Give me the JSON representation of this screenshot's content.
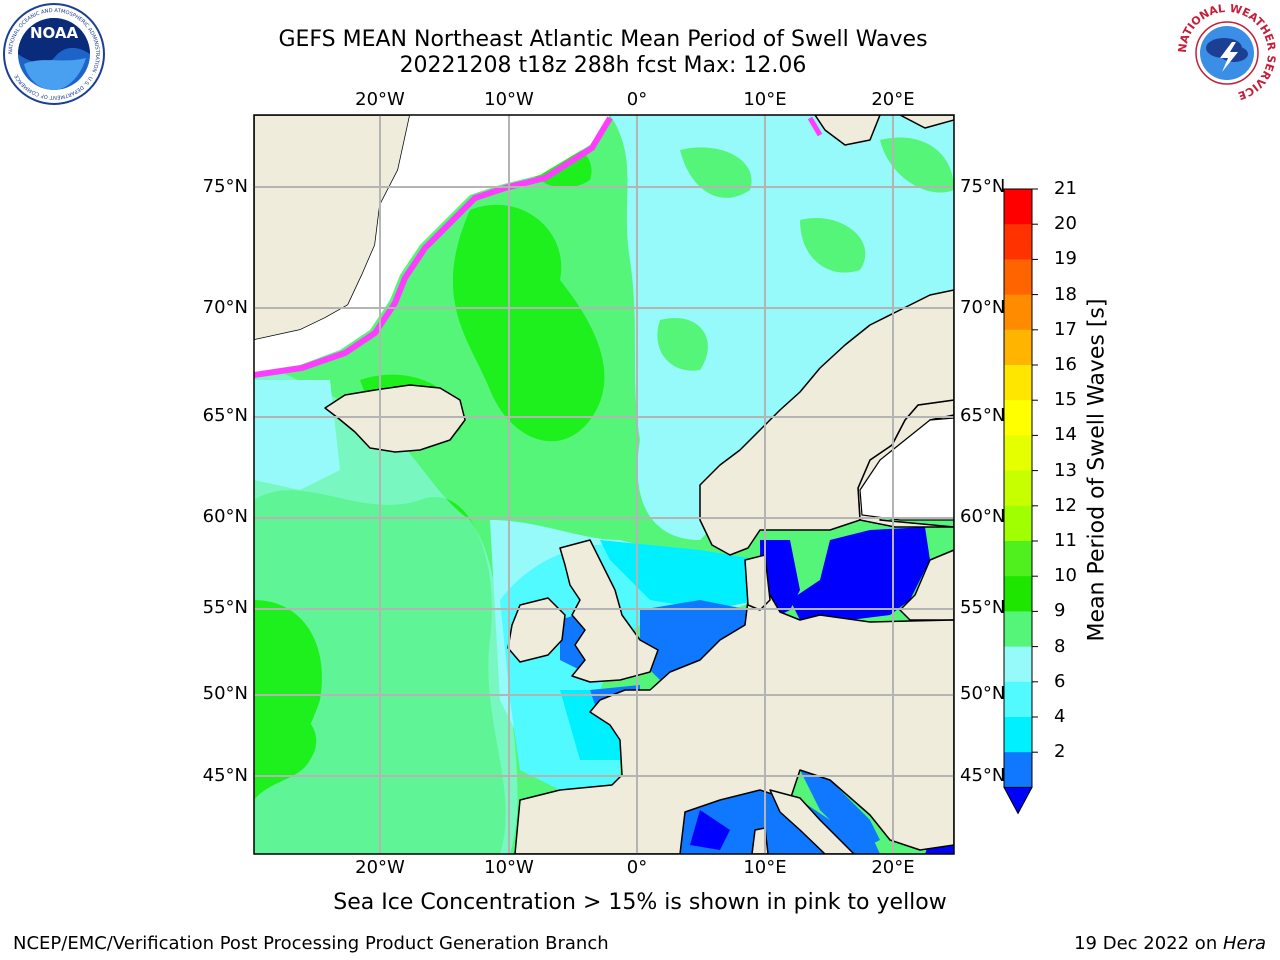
{
  "title": {
    "line1": "GEFS MEAN Northeast Atlantic Mean Period of Swell Waves",
    "line2": "20221208 t18z 288h fcst   Max: 12.06"
  },
  "map": {
    "lon_labels_top": [
      "20°W",
      "10°W",
      "0°",
      "10°E",
      "20°E"
    ],
    "lon_labels_bottom": [
      "20°W",
      "10°W",
      "0°",
      "10°E",
      "20°E"
    ],
    "lat_labels_left": [
      "75°N",
      "70°N",
      "65°N",
      "60°N",
      "55°N",
      "50°N",
      "45°N"
    ],
    "lat_labels_right": [
      "75°N",
      "70°N",
      "65°N",
      "60°N",
      "55°N",
      "50°N",
      "45°N"
    ],
    "colors": {
      "land": "#efecdc",
      "ocean_9_10": "#55f57a",
      "ocean_10_11": "#1ef01e",
      "ocean_8_9": "#96fafa",
      "ocean_6_8": "#50faff",
      "ocean_4_6": "#00f0ff",
      "ocean_2_4": "#0f78ff",
      "ocean_lt_2": "#0000ff",
      "sea_ice": "#ff3cff",
      "grid": "#b4b4b4"
    }
  },
  "colorbar": {
    "label": "Mean Period of Swell Waves [s]",
    "ticks": [
      "21",
      "20",
      "19",
      "18",
      "17",
      "16",
      "15",
      "14",
      "13",
      "12",
      "11",
      "10",
      "9",
      "8",
      "6",
      "4",
      "2"
    ],
    "colors": [
      "#ff0000",
      "#ff3200",
      "#ff6400",
      "#ff8c00",
      "#ffb400",
      "#ffe600",
      "#ffff00",
      "#e6ff00",
      "#c8ff00",
      "#a0ff00",
      "#50f01e",
      "#1ee600",
      "#55f57a",
      "#96fafa",
      "#50faff",
      "#00f0ff",
      "#0f78ff"
    ],
    "extend_color": "#0000ff"
  },
  "footnote": "Sea Ice Concentration > 15% is shown in pink to yellow",
  "credit_left": "NCEP/EMC/Verification Post Processing Product Generation Branch",
  "credit_right_date": "19 Dec 2022 on ",
  "credit_right_host": "Hera",
  "logos": {
    "noaa": "NOAA",
    "noaa_ring": "NATIONAL OCEANIC AND ATMOSPHERIC ADMINISTRATION · U.S. DEPARTMENT OF COMMERCE",
    "nws_ring": "NATIONAL WEATHER SERVICE"
  }
}
